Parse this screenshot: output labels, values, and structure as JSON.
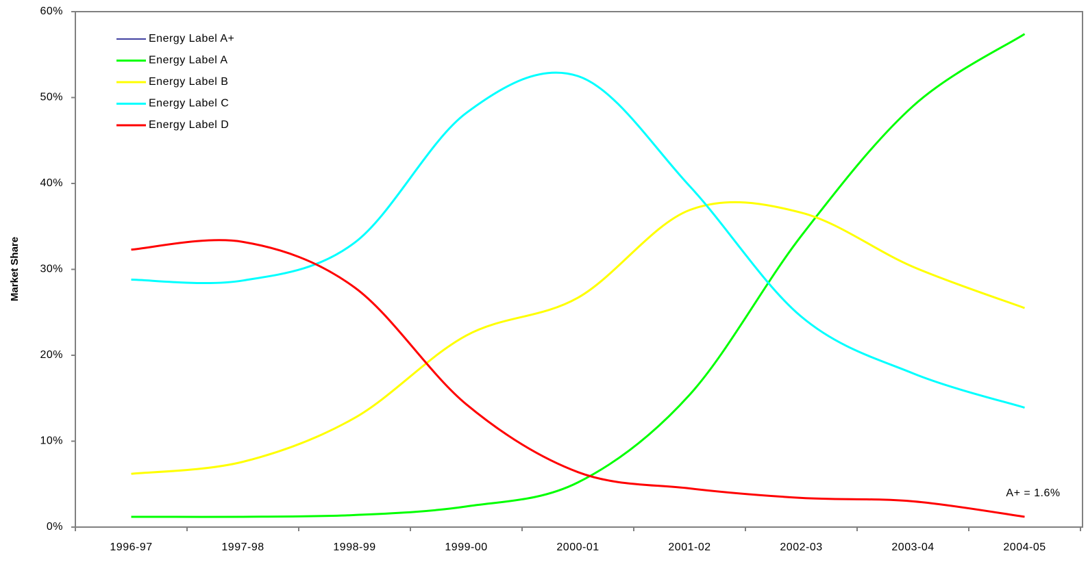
{
  "chart_data": {
    "type": "line",
    "y_label": "Market Share",
    "annotation": "A+ = 1.6%",
    "categories": [
      "1996-97",
      "1997-98",
      "1998-99",
      "1999-00",
      "2000-01",
      "2001-02",
      "2002-03",
      "2003-04",
      "2004-05"
    ],
    "series": [
      {
        "name": "Energy Label A+",
        "color": "#000080",
        "values": [
          null,
          null,
          null,
          null,
          null,
          null,
          null,
          null,
          null
        ]
      },
      {
        "name": "Energy Label A",
        "color": "#00ff00",
        "values": [
          1.2,
          1.2,
          1.4,
          2.4,
          5.2,
          15.4,
          33.9,
          49.0,
          57.4
        ]
      },
      {
        "name": "Energy Label B",
        "color": "#ffff00",
        "values": [
          6.2,
          7.6,
          12.7,
          22.3,
          26.7,
          36.9,
          36.6,
          30.3,
          25.5
        ]
      },
      {
        "name": "Energy Label C",
        "color": "#00ffff",
        "values": [
          28.8,
          28.7,
          33.1,
          48.2,
          52.5,
          39.7,
          24.5,
          17.9,
          13.9
        ]
      },
      {
        "name": "Energy Label D",
        "color": "#ff0000",
        "values": [
          32.3,
          33.2,
          27.9,
          14.3,
          6.4,
          4.5,
          3.4,
          3.0,
          1.2
        ]
      }
    ],
    "ylim": [
      0,
      60
    ],
    "yticks": [
      {
        "value": 0,
        "label": "0%"
      },
      {
        "value": 10,
        "label": "10%"
      },
      {
        "value": 20,
        "label": "20%"
      },
      {
        "value": 30,
        "label": "30%"
      },
      {
        "value": 40,
        "label": "40%"
      },
      {
        "value": 50,
        "label": "50%"
      },
      {
        "value": 60,
        "label": "60%"
      }
    ],
    "grid": false,
    "legend": "top-left",
    "smooth": true
  }
}
